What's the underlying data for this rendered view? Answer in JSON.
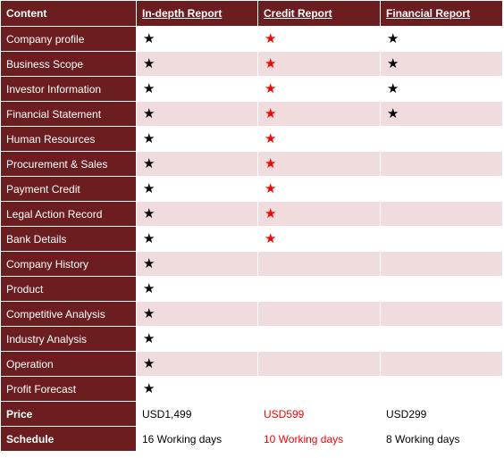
{
  "headers": [
    "Content",
    "In-depth Report",
    "Credit Report",
    "Financial Report"
  ],
  "rows": [
    {
      "label": "Company profile",
      "marks": [
        "black",
        "red",
        "black"
      ]
    },
    {
      "label": "Business Scope",
      "marks": [
        "black",
        "red",
        "black"
      ]
    },
    {
      "label": "Investor Information",
      "marks": [
        "black",
        "red",
        "black"
      ]
    },
    {
      "label": "Financial Statement",
      "marks": [
        "black",
        "red",
        "black"
      ]
    },
    {
      "label": "Human Resources",
      "marks": [
        "black",
        "red",
        ""
      ]
    },
    {
      "label": "Procurement & Sales",
      "marks": [
        "black",
        "red",
        ""
      ]
    },
    {
      "label": "Payment Credit",
      "marks": [
        "black",
        "red",
        ""
      ]
    },
    {
      "label": "Legal Action Record",
      "marks": [
        "black",
        "red",
        ""
      ]
    },
    {
      "label": "Bank Details",
      "marks": [
        "black",
        "red",
        ""
      ]
    },
    {
      "label": "Company History",
      "marks": [
        "black",
        "",
        ""
      ]
    },
    {
      "label": "Product",
      "marks": [
        "black",
        "",
        ""
      ]
    },
    {
      "label": "Competitive Analysis",
      "marks": [
        "black",
        "",
        ""
      ]
    },
    {
      "label": "Industry Analysis",
      "marks": [
        "black",
        "",
        ""
      ]
    },
    {
      "label": "Operation",
      "marks": [
        "black",
        "",
        ""
      ]
    },
    {
      "label": "Profit Forecast",
      "marks": [
        "black",
        "",
        ""
      ]
    }
  ],
  "star_glyph": "★",
  "star_colors": {
    "black": "#000000",
    "red": "#ff0000"
  },
  "summary": {
    "price": {
      "label": "Price",
      "values": [
        "USD1,499",
        "USD599",
        "USD299"
      ]
    },
    "schedule": {
      "label": "Schedule",
      "values": [
        "16 Working days",
        "10 Working days",
        "8 Working days"
      ]
    }
  },
  "colors": {
    "header_bg": "#6b1d1f",
    "stripe": "#f0dcdc",
    "highlight_text": "#ff0000"
  }
}
